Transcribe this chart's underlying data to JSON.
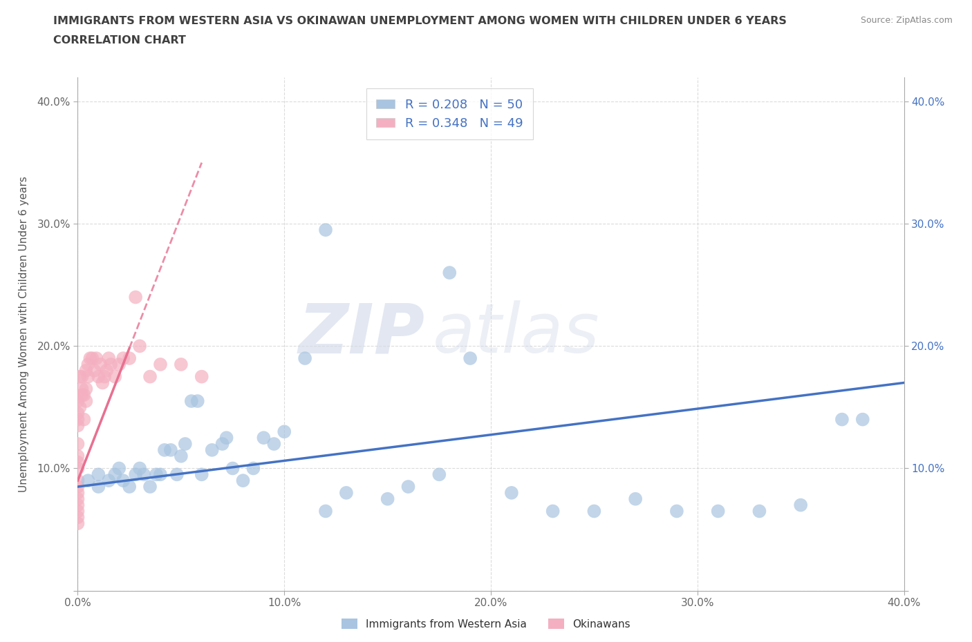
{
  "title": "IMMIGRANTS FROM WESTERN ASIA VS OKINAWAN UNEMPLOYMENT AMONG WOMEN WITH CHILDREN UNDER 6 YEARS",
  "subtitle": "CORRELATION CHART",
  "source": "Source: ZipAtlas.com",
  "ylabel": "Unemployment Among Women with Children Under 6 years",
  "xlim": [
    0.0,
    0.4
  ],
  "ylim": [
    0.0,
    0.42
  ],
  "xticks": [
    0.0,
    0.1,
    0.2,
    0.3,
    0.4
  ],
  "yticks": [
    0.0,
    0.1,
    0.2,
    0.3,
    0.4
  ],
  "xticklabels": [
    "0.0%",
    "10.0%",
    "20.0%",
    "30.0%",
    "40.0%"
  ],
  "yticklabels": [
    "",
    "10.0%",
    "20.0%",
    "30.0%",
    "40.0%"
  ],
  "blue_R": 0.208,
  "blue_N": 50,
  "pink_R": 0.348,
  "pink_N": 49,
  "blue_color": "#a8c4e0",
  "pink_color": "#f4b0c0",
  "blue_line_color": "#4472c4",
  "pink_line_color": "#e87090",
  "legend_text_color": "#4472c4",
  "title_color": "#404040",
  "watermark_zip": "ZIP",
  "watermark_atlas": "atlas",
  "blue_scatter_x": [
    0.005,
    0.01,
    0.01,
    0.015,
    0.018,
    0.02,
    0.022,
    0.025,
    0.028,
    0.03,
    0.032,
    0.035,
    0.038,
    0.04,
    0.042,
    0.045,
    0.048,
    0.05,
    0.052,
    0.055,
    0.058,
    0.06,
    0.065,
    0.07,
    0.072,
    0.075,
    0.08,
    0.085,
    0.09,
    0.095,
    0.1,
    0.11,
    0.12,
    0.13,
    0.15,
    0.16,
    0.175,
    0.19,
    0.21,
    0.23,
    0.25,
    0.27,
    0.29,
    0.31,
    0.33,
    0.35,
    0.37,
    0.38,
    0.12,
    0.18
  ],
  "blue_scatter_y": [
    0.09,
    0.095,
    0.085,
    0.09,
    0.095,
    0.1,
    0.09,
    0.085,
    0.095,
    0.1,
    0.095,
    0.085,
    0.095,
    0.095,
    0.115,
    0.115,
    0.095,
    0.11,
    0.12,
    0.155,
    0.155,
    0.095,
    0.115,
    0.12,
    0.125,
    0.1,
    0.09,
    0.1,
    0.125,
    0.12,
    0.13,
    0.19,
    0.295,
    0.08,
    0.075,
    0.085,
    0.095,
    0.19,
    0.08,
    0.065,
    0.065,
    0.075,
    0.065,
    0.065,
    0.065,
    0.07,
    0.14,
    0.14,
    0.065,
    0.26
  ],
  "pink_scatter_x": [
    0.0,
    0.0,
    0.0,
    0.0,
    0.0,
    0.0,
    0.0,
    0.0,
    0.0,
    0.0,
    0.0,
    0.0,
    0.0,
    0.0,
    0.0,
    0.0,
    0.001,
    0.001,
    0.002,
    0.002,
    0.002,
    0.003,
    0.003,
    0.004,
    0.004,
    0.004,
    0.005,
    0.005,
    0.006,
    0.007,
    0.008,
    0.009,
    0.01,
    0.011,
    0.012,
    0.013,
    0.014,
    0.015,
    0.016,
    0.018,
    0.02,
    0.022,
    0.025,
    0.028,
    0.03,
    0.035,
    0.04,
    0.05,
    0.06
  ],
  "pink_scatter_y": [
    0.055,
    0.06,
    0.065,
    0.07,
    0.075,
    0.08,
    0.085,
    0.09,
    0.1,
    0.105,
    0.11,
    0.12,
    0.135,
    0.14,
    0.145,
    0.155,
    0.15,
    0.175,
    0.165,
    0.16,
    0.175,
    0.14,
    0.16,
    0.155,
    0.165,
    0.18,
    0.175,
    0.185,
    0.19,
    0.19,
    0.18,
    0.19,
    0.175,
    0.185,
    0.17,
    0.175,
    0.18,
    0.19,
    0.185,
    0.175,
    0.185,
    0.19,
    0.19,
    0.24,
    0.2,
    0.175,
    0.185,
    0.185,
    0.175
  ]
}
